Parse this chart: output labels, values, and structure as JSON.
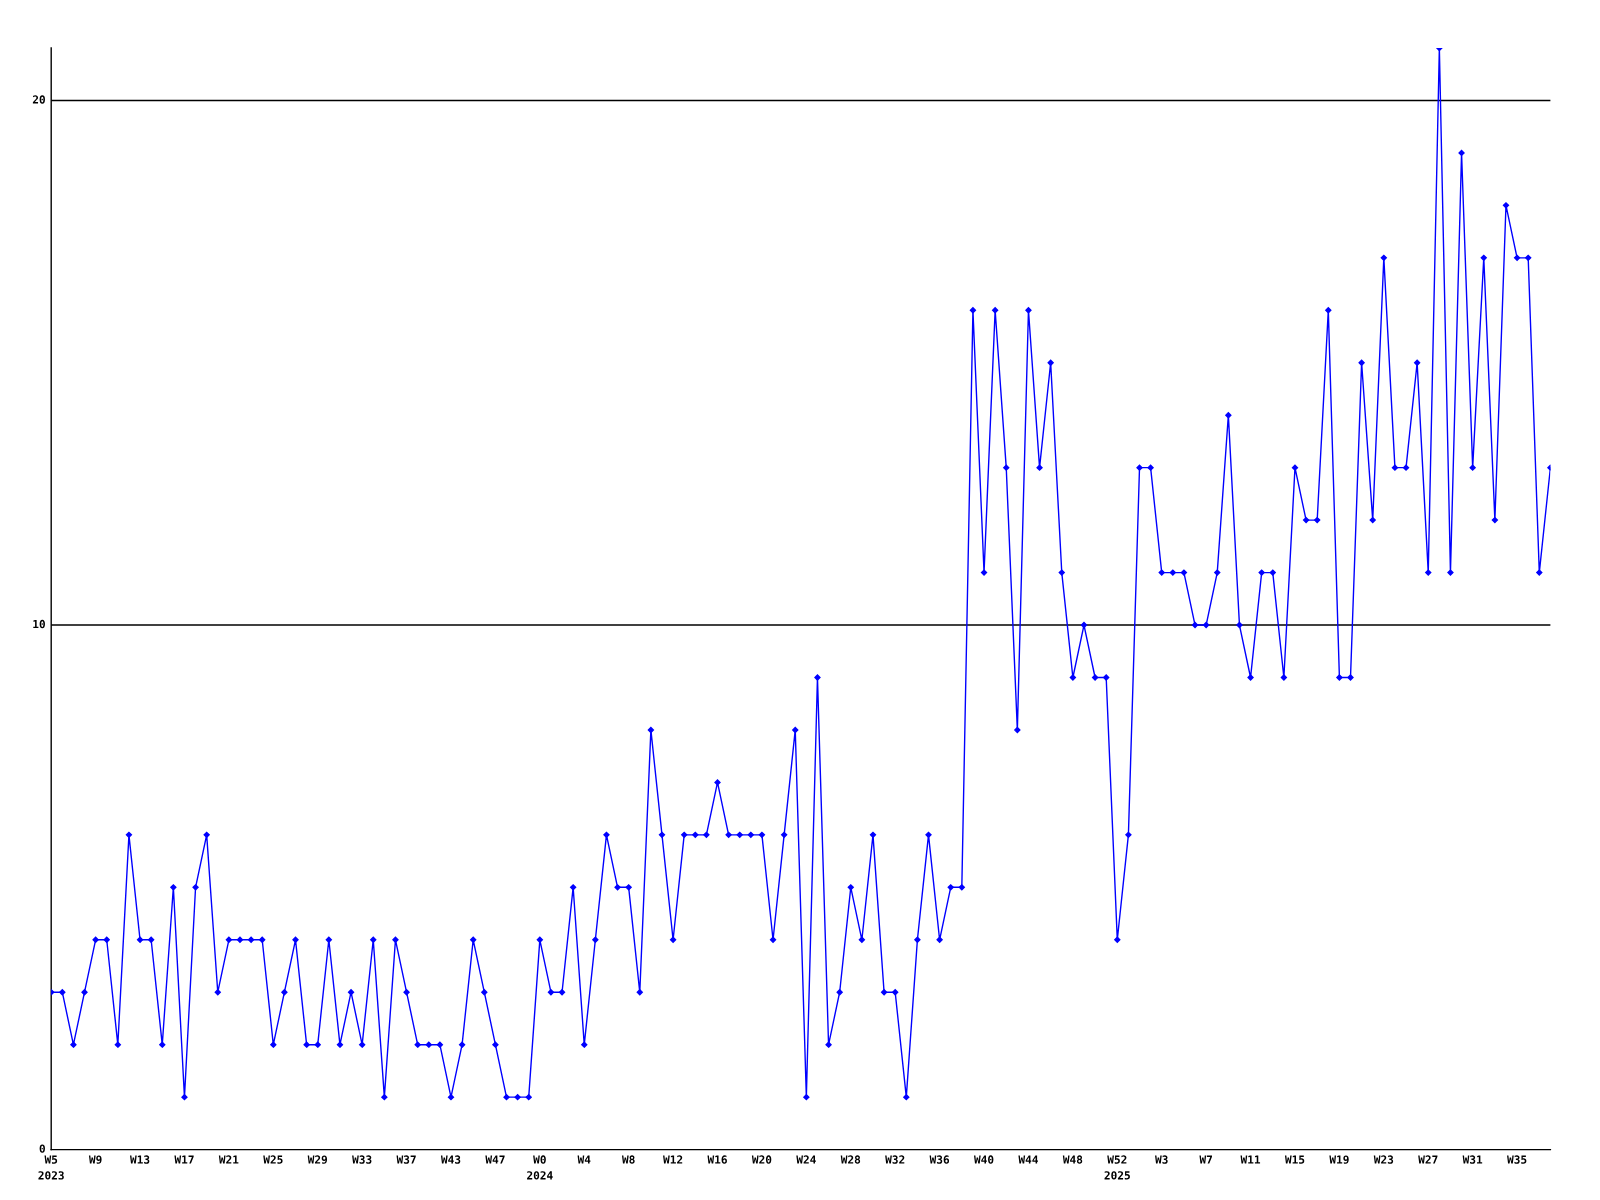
{
  "chart_data": {
    "type": "line",
    "categories": [
      "W5\n2023",
      null,
      null,
      null,
      "W9",
      null,
      null,
      null,
      "W13",
      null,
      null,
      null,
      "W17",
      null,
      null,
      null,
      "W21",
      null,
      null,
      null,
      "W25",
      null,
      null,
      null,
      "W29",
      null,
      null,
      null,
      "W33",
      null,
      null,
      null,
      "W37",
      null,
      null,
      null,
      "W43",
      null,
      null,
      null,
      "W47",
      null,
      null,
      null,
      "W0\n2024",
      null,
      null,
      null,
      "W4",
      null,
      null,
      null,
      "W8",
      null,
      null,
      null,
      "W12",
      null,
      null,
      null,
      "W16",
      null,
      null,
      null,
      "W20",
      null,
      null,
      null,
      "W24",
      null,
      null,
      null,
      "W28",
      null,
      null,
      null,
      "W32",
      null,
      null,
      null,
      "W36",
      null,
      null,
      null,
      "W40",
      null,
      null,
      null,
      "W44",
      null,
      null,
      null,
      "W48",
      null,
      null,
      null,
      "W52\n2025",
      null,
      null,
      null,
      "W3",
      null,
      null,
      null,
      "W7",
      null,
      null,
      null,
      "W11",
      null,
      null,
      null,
      "W15",
      null,
      null,
      null,
      "W19",
      null,
      null,
      null,
      "W23",
      null,
      null,
      null,
      "W27",
      null,
      null,
      null,
      "W31",
      null,
      null,
      null,
      "W35",
      null,
      null,
      null
    ],
    "series": [
      {
        "color": "#0000ff",
        "values": [
          3,
          3,
          2,
          3,
          4,
          4,
          2,
          6,
          4,
          4,
          2,
          5,
          1,
          5,
          6,
          3,
          4,
          4,
          4,
          4,
          2,
          3,
          4,
          2,
          2,
          4,
          2,
          3,
          2,
          4,
          1,
          4,
          3,
          2,
          2,
          2,
          1,
          2,
          4,
          3,
          2,
          1,
          1,
          1,
          4,
          3,
          3,
          5,
          2,
          4,
          6,
          5,
          5,
          3,
          8,
          6,
          4,
          6,
          6,
          6,
          7,
          6,
          6,
          6,
          6,
          4,
          6,
          8,
          1,
          9,
          2,
          3,
          5,
          4,
          6,
          3,
          3,
          1,
          4,
          6,
          4,
          5,
          5,
          16,
          11,
          16,
          13,
          8,
          16,
          13,
          15,
          11,
          9,
          10,
          9,
          9,
          4,
          6,
          13,
          13,
          11,
          11,
          11,
          10,
          10,
          11,
          14,
          10,
          9,
          11,
          11,
          9,
          13,
          12,
          12,
          16,
          9,
          9,
          15,
          12,
          17,
          13,
          13,
          15,
          11,
          21,
          11,
          19,
          13,
          17,
          12,
          18,
          17,
          17,
          11,
          13
        ]
      }
    ],
    "ylim": [
      0,
      21
    ],
    "yticks": [
      0,
      10,
      20
    ],
    "grid": "y",
    "marker": "diamond",
    "line_style": "solid"
  }
}
